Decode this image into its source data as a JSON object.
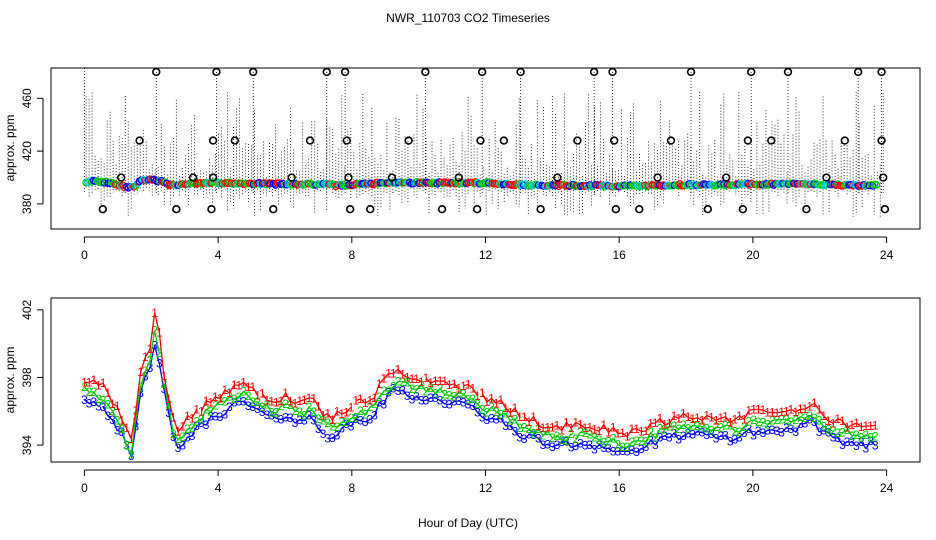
{
  "chart_data": [
    {
      "type": "scatter",
      "panel": "top",
      "title": "NWR_110703  CO2 Timeseries",
      "xlabel": "",
      "ylabel": "approx. ppm",
      "xlim": [
        -1,
        25
      ],
      "ylim": [
        361,
        483
      ],
      "xticks": [
        0,
        4,
        8,
        12,
        16,
        20,
        24
      ],
      "yticks": [
        380,
        420,
        460
      ],
      "grid": false,
      "legend": "none",
      "base_series": [
        {
          "x": 0.0,
          "y": 397.0
        },
        {
          "x": 0.4,
          "y": 397.0
        },
        {
          "x": 0.8,
          "y": 396.0
        },
        {
          "x": 1.1,
          "y": 394.0
        },
        {
          "x": 1.3,
          "y": 392.0
        },
        {
          "x": 1.5,
          "y": 393.0
        },
        {
          "x": 1.7,
          "y": 398.0
        },
        {
          "x": 2.0,
          "y": 399.0
        },
        {
          "x": 2.3,
          "y": 397.0
        },
        {
          "x": 2.6,
          "y": 394.0
        },
        {
          "x": 3.0,
          "y": 395.0
        },
        {
          "x": 4.0,
          "y": 396.0
        },
        {
          "x": 5.0,
          "y": 395.5
        },
        {
          "x": 6.0,
          "y": 395.0
        },
        {
          "x": 7.0,
          "y": 395.0
        },
        {
          "x": 7.6,
          "y": 394.0
        },
        {
          "x": 8.0,
          "y": 394.5
        },
        {
          "x": 9.0,
          "y": 396.0
        },
        {
          "x": 10.0,
          "y": 396.0
        },
        {
          "x": 11.0,
          "y": 396.0
        },
        {
          "x": 12.0,
          "y": 396.0
        },
        {
          "x": 13.0,
          "y": 394.5
        },
        {
          "x": 14.0,
          "y": 394.0
        },
        {
          "x": 15.0,
          "y": 394.0
        },
        {
          "x": 16.0,
          "y": 393.5
        },
        {
          "x": 17.0,
          "y": 394.0
        },
        {
          "x": 18.0,
          "y": 394.5
        },
        {
          "x": 19.0,
          "y": 394.5
        },
        {
          "x": 20.0,
          "y": 395.0
        },
        {
          "x": 21.0,
          "y": 395.0
        },
        {
          "x": 22.0,
          "y": 395.0
        },
        {
          "x": 23.0,
          "y": 394.0
        },
        {
          "x": 23.6,
          "y": 394.0
        }
      ],
      "outliers_high": [
        {
          "x": 2.15,
          "y": 480
        },
        {
          "x": 3.95,
          "y": 480
        },
        {
          "x": 5.05,
          "y": 480
        },
        {
          "x": 7.25,
          "y": 480
        },
        {
          "x": 7.8,
          "y": 480
        },
        {
          "x": 10.2,
          "y": 480
        },
        {
          "x": 11.9,
          "y": 480
        },
        {
          "x": 13.05,
          "y": 480
        },
        {
          "x": 15.25,
          "y": 480
        },
        {
          "x": 15.8,
          "y": 480
        },
        {
          "x": 18.15,
          "y": 480
        },
        {
          "x": 19.95,
          "y": 480
        },
        {
          "x": 21.05,
          "y": 480
        },
        {
          "x": 23.15,
          "y": 480
        },
        {
          "x": 23.85,
          "y": 480
        },
        {
          "x": 1.65,
          "y": 428
        },
        {
          "x": 3.85,
          "y": 428
        },
        {
          "x": 4.5,
          "y": 428
        },
        {
          "x": 6.75,
          "y": 428
        },
        {
          "x": 7.85,
          "y": 428
        },
        {
          "x": 9.7,
          "y": 428
        },
        {
          "x": 11.85,
          "y": 428
        },
        {
          "x": 12.55,
          "y": 428
        },
        {
          "x": 14.75,
          "y": 428
        },
        {
          "x": 15.85,
          "y": 428
        },
        {
          "x": 17.55,
          "y": 428
        },
        {
          "x": 19.85,
          "y": 428
        },
        {
          "x": 20.55,
          "y": 428
        },
        {
          "x": 22.75,
          "y": 428
        },
        {
          "x": 23.85,
          "y": 428
        },
        {
          "x": 1.1,
          "y": 400
        },
        {
          "x": 3.25,
          "y": 400
        },
        {
          "x": 3.85,
          "y": 400
        },
        {
          "x": 6.2,
          "y": 400
        },
        {
          "x": 7.9,
          "y": 400
        },
        {
          "x": 9.2,
          "y": 400
        },
        {
          "x": 11.2,
          "y": 400
        },
        {
          "x": 14.15,
          "y": 400
        },
        {
          "x": 17.15,
          "y": 400
        },
        {
          "x": 19.2,
          "y": 400
        },
        {
          "x": 22.2,
          "y": 400
        },
        {
          "x": 23.9,
          "y": 400
        }
      ],
      "outliers_low": [
        {
          "x": 0.55,
          "y": 376
        },
        {
          "x": 2.75,
          "y": 376
        },
        {
          "x": 3.8,
          "y": 376
        },
        {
          "x": 5.65,
          "y": 376
        },
        {
          "x": 7.95,
          "y": 376
        },
        {
          "x": 8.55,
          "y": 376
        },
        {
          "x": 10.7,
          "y": 376
        },
        {
          "x": 11.75,
          "y": 376
        },
        {
          "x": 13.65,
          "y": 376
        },
        {
          "x": 15.9,
          "y": 376
        },
        {
          "x": 16.6,
          "y": 376
        },
        {
          "x": 18.65,
          "y": 376
        },
        {
          "x": 19.7,
          "y": 376
        },
        {
          "x": 21.6,
          "y": 376
        },
        {
          "x": 23.95,
          "y": 376
        }
      ]
    },
    {
      "type": "line",
      "panel": "bottom",
      "title": "",
      "xlabel": "Hour of Day (UTC)",
      "ylabel": "approx. ppm",
      "xlim": [
        -1,
        25
      ],
      "ylim": [
        393.0,
        402.7
      ],
      "xticks": [
        0,
        4,
        8,
        12,
        16,
        20,
        24
      ],
      "yticks": [
        394,
        398,
        402
      ],
      "grid": false,
      "legend": "none",
      "series": [
        {
          "name": "1",
          "color": "#ff0000",
          "label_char": "1",
          "offset": 0.6
        },
        {
          "name": "2",
          "color": "#00cc00",
          "label_char": "2",
          "offset": 0.0
        },
        {
          "name": "3",
          "color": "#0000ff",
          "label_char": "3",
          "offset": -0.5
        }
      ],
      "base_series": [
        {
          "x": 0.0,
          "y": 397.3
        },
        {
          "x": 0.3,
          "y": 397.0
        },
        {
          "x": 0.6,
          "y": 396.8
        },
        {
          "x": 0.9,
          "y": 395.8
        },
        {
          "x": 1.1,
          "y": 395.2
        },
        {
          "x": 1.3,
          "y": 394.0
        },
        {
          "x": 1.45,
          "y": 393.5
        },
        {
          "x": 1.6,
          "y": 397.0
        },
        {
          "x": 1.8,
          "y": 398.3
        },
        {
          "x": 2.0,
          "y": 399.2
        },
        {
          "x": 2.15,
          "y": 401.3
        },
        {
          "x": 2.3,
          "y": 398.3
        },
        {
          "x": 2.5,
          "y": 396.5
        },
        {
          "x": 2.6,
          "y": 395.0
        },
        {
          "x": 2.8,
          "y": 394.3
        },
        {
          "x": 3.0,
          "y": 394.8
        },
        {
          "x": 3.3,
          "y": 395.3
        },
        {
          "x": 3.6,
          "y": 395.8
        },
        {
          "x": 4.0,
          "y": 396.3
        },
        {
          "x": 4.4,
          "y": 396.8
        },
        {
          "x": 4.8,
          "y": 397.0
        },
        {
          "x": 5.2,
          "y": 396.5
        },
        {
          "x": 5.6,
          "y": 396.0
        },
        {
          "x": 6.0,
          "y": 396.3
        },
        {
          "x": 6.5,
          "y": 395.8
        },
        {
          "x": 6.8,
          "y": 396.2
        },
        {
          "x": 7.1,
          "y": 395.3
        },
        {
          "x": 7.4,
          "y": 395.0
        },
        {
          "x": 7.7,
          "y": 395.3
        },
        {
          "x": 8.0,
          "y": 395.8
        },
        {
          "x": 8.5,
          "y": 396.0
        },
        {
          "x": 9.0,
          "y": 397.2
        },
        {
          "x": 9.3,
          "y": 397.8
        },
        {
          "x": 9.8,
          "y": 397.4
        },
        {
          "x": 10.5,
          "y": 397.2
        },
        {
          "x": 11.0,
          "y": 397.0
        },
        {
          "x": 11.5,
          "y": 396.8
        },
        {
          "x": 12.0,
          "y": 396.2
        },
        {
          "x": 12.5,
          "y": 395.8
        },
        {
          "x": 13.0,
          "y": 395.2
        },
        {
          "x": 13.5,
          "y": 394.8
        },
        {
          "x": 14.0,
          "y": 394.5
        },
        {
          "x": 14.5,
          "y": 394.5
        },
        {
          "x": 15.0,
          "y": 394.6
        },
        {
          "x": 15.5,
          "y": 394.4
        },
        {
          "x": 15.9,
          "y": 394.2
        },
        {
          "x": 16.0,
          "y": 394.0
        },
        {
          "x": 16.5,
          "y": 394.2
        },
        {
          "x": 17.0,
          "y": 394.6
        },
        {
          "x": 17.5,
          "y": 394.9
        },
        {
          "x": 18.0,
          "y": 395.2
        },
        {
          "x": 18.5,
          "y": 395.0
        },
        {
          "x": 19.0,
          "y": 395.0
        },
        {
          "x": 19.5,
          "y": 394.9
        },
        {
          "x": 20.0,
          "y": 395.3
        },
        {
          "x": 20.5,
          "y": 395.3
        },
        {
          "x": 21.0,
          "y": 395.4
        },
        {
          "x": 21.5,
          "y": 395.6
        },
        {
          "x": 21.8,
          "y": 395.9
        },
        {
          "x": 22.0,
          "y": 395.2
        },
        {
          "x": 22.5,
          "y": 394.8
        },
        {
          "x": 23.0,
          "y": 394.6
        },
        {
          "x": 23.6,
          "y": 394.5
        }
      ]
    }
  ]
}
